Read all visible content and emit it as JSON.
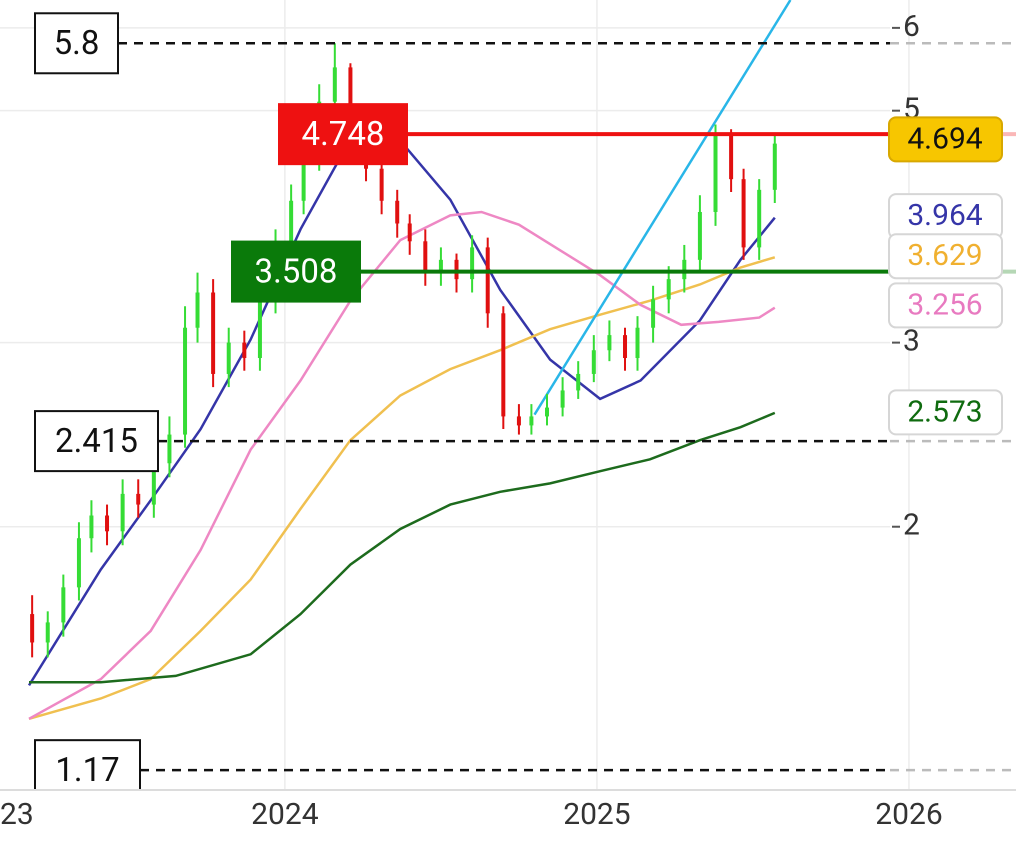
{
  "chart_data": {
    "type": "candlestick",
    "log_scale": true,
    "grid": true,
    "xlim": [
      2023.087,
      2026.343
    ],
    "ylim": [
      1.12,
      6.38
    ],
    "xticks": [
      {
        "value": 2023,
        "label": "23"
      },
      2024,
      2025,
      2026
    ],
    "yticks": [
      2,
      3,
      5,
      6
    ],
    "candles": {
      "up_color": "#35dc35",
      "down_color": "#e01010",
      "last_price": 4.694,
      "x": [
        2023.19,
        2023.24,
        2023.29,
        2023.34,
        2023.38,
        2023.43,
        2023.48,
        2023.53,
        2023.58,
        2023.63,
        2023.68,
        2023.72,
        2023.77,
        2023.82,
        2023.87,
        2023.92,
        2023.97,
        2024.02,
        2024.06,
        2024.11,
        2024.16,
        2024.21,
        2024.26,
        2024.31,
        2024.36,
        2024.4,
        2024.45,
        2024.5,
        2024.55,
        2024.6,
        2024.65,
        2024.7,
        2024.75,
        2024.79,
        2024.84,
        2024.89,
        2024.94,
        2024.99,
        2025.04,
        2025.09,
        2025.13,
        2025.18,
        2025.23,
        2025.28,
        2025.33,
        2025.38,
        2025.43,
        2025.47,
        2025.52,
        2025.57
      ],
      "open": [
        1.65,
        1.55,
        1.62,
        1.75,
        1.95,
        2.05,
        1.98,
        2.15,
        2.1,
        2.3,
        2.45,
        3.1,
        3.35,
        2.8,
        3.0,
        2.9,
        3.3,
        3.7,
        4.1,
        4.5,
        5.1,
        5.5,
        4.9,
        4.4,
        4.1,
        3.9,
        3.75,
        3.5,
        3.6,
        3.45,
        3.7,
        3.2,
        2.55,
        2.5,
        2.55,
        2.6,
        2.7,
        2.8,
        2.95,
        3.05,
        2.9,
        3.1,
        3.3,
        3.45,
        3.6,
        4.0,
        4.75,
        4.3,
        3.7,
        4.2
      ],
      "high": [
        1.72,
        1.66,
        1.8,
        2.02,
        2.12,
        2.1,
        2.22,
        2.22,
        2.38,
        2.55,
        3.25,
        3.5,
        3.45,
        3.1,
        3.08,
        3.42,
        3.85,
        4.25,
        4.65,
        5.3,
        5.8,
        5.55,
        4.98,
        4.5,
        4.2,
        3.98,
        3.85,
        3.7,
        3.65,
        3.8,
        3.78,
        3.25,
        2.62,
        2.62,
        2.68,
        2.78,
        2.88,
        3.05,
        3.15,
        3.1,
        3.18,
        3.4,
        3.55,
        3.72,
        4.15,
        4.85,
        4.8,
        4.4,
        4.3,
        4.75
      ],
      "low": [
        1.5,
        1.5,
        1.57,
        1.7,
        1.89,
        1.92,
        1.92,
        2.04,
        2.04,
        2.23,
        2.38,
        3.0,
        2.72,
        2.72,
        2.82,
        2.82,
        3.2,
        3.6,
        3.98,
        4.38,
        4.95,
        4.75,
        4.28,
        3.98,
        3.78,
        3.64,
        3.4,
        3.4,
        3.35,
        3.35,
        3.1,
        2.48,
        2.45,
        2.45,
        2.5,
        2.55,
        2.65,
        2.75,
        2.88,
        2.82,
        2.82,
        3.0,
        3.2,
        3.35,
        3.5,
        3.88,
        4.18,
        3.6,
        3.6,
        4.08
      ],
      "close": [
        1.55,
        1.62,
        1.75,
        1.95,
        2.05,
        1.98,
        2.15,
        2.1,
        2.3,
        2.45,
        3.1,
        3.35,
        2.8,
        3.0,
        2.9,
        3.3,
        3.7,
        4.1,
        4.5,
        5.1,
        5.5,
        4.9,
        4.4,
        4.1,
        3.9,
        3.75,
        3.5,
        3.6,
        3.45,
        3.7,
        3.2,
        2.55,
        2.5,
        2.55,
        2.6,
        2.7,
        2.8,
        2.95,
        3.05,
        2.9,
        3.1,
        3.3,
        3.45,
        3.6,
        4.0,
        4.75,
        4.3,
        3.7,
        4.2,
        4.65
      ]
    },
    "moving_averages": [
      {
        "color": "#3535a8",
        "label_color": "#3535a8",
        "last": 3.964,
        "x": [
          2023.18,
          2023.41,
          2023.57,
          2023.73,
          2023.89,
          2024.05,
          2024.19,
          2024.37,
          2024.53,
          2024.69,
          2024.85,
          2025.01,
          2025.14,
          2025.33,
          2025.46,
          2025.57
        ],
        "values": [
          1.41,
          1.82,
          2.12,
          2.48,
          3.02,
          3.85,
          4.58,
          4.68,
          4.11,
          3.37,
          2.89,
          2.65,
          2.76,
          3.15,
          3.6,
          3.95
        ]
      },
      {
        "color": "#f0c050",
        "label_color": "#f0b030",
        "last": 3.629,
        "x": [
          2023.18,
          2023.41,
          2023.57,
          2023.73,
          2023.89,
          2024.05,
          2024.21,
          2024.37,
          2024.53,
          2024.69,
          2024.85,
          2025.01,
          2025.17,
          2025.33,
          2025.46,
          2025.57
        ],
        "values": [
          1.31,
          1.37,
          1.43,
          1.59,
          1.78,
          2.08,
          2.42,
          2.67,
          2.83,
          2.95,
          3.09,
          3.19,
          3.29,
          3.41,
          3.54,
          3.62
        ]
      },
      {
        "color": "#ee88c4",
        "label_color": "#e87ac0",
        "last": 3.256,
        "x": [
          2023.18,
          2023.41,
          2023.57,
          2023.73,
          2023.89,
          2024.05,
          2024.21,
          2024.37,
          2024.53,
          2024.63,
          2024.75,
          2024.88,
          2025.01,
          2025.14,
          2025.27,
          2025.39,
          2025.52,
          2025.57
        ],
        "values": [
          1.31,
          1.43,
          1.59,
          1.9,
          2.37,
          2.76,
          3.29,
          3.76,
          3.97,
          4.0,
          3.89,
          3.68,
          3.48,
          3.26,
          3.12,
          3.14,
          3.17,
          3.24
        ]
      },
      {
        "color": "#1d6b1d",
        "label_color": "#0f6b0f",
        "last": 2.573,
        "x": [
          2023.18,
          2023.41,
          2023.65,
          2023.89,
          2024.05,
          2024.21,
          2024.37,
          2024.53,
          2024.69,
          2024.85,
          2025.01,
          2025.17,
          2025.33,
          2025.46,
          2025.57
        ],
        "values": [
          1.42,
          1.42,
          1.44,
          1.51,
          1.65,
          1.84,
          1.99,
          2.1,
          2.16,
          2.2,
          2.26,
          2.32,
          2.42,
          2.49,
          2.57
        ]
      }
    ],
    "trendlines": [
      {
        "color": "#29b6e8",
        "x": [
          2024.8,
          2025.62
        ],
        "values": [
          2.56,
          6.38
        ]
      }
    ],
    "levels": [
      {
        "value": 5.8,
        "color": "#111111",
        "style": "dashed"
      },
      {
        "value": 4.748,
        "color": "#ee1111",
        "style": "solid"
      },
      {
        "value": 3.508,
        "color": "#0a7a0a",
        "style": "solid"
      },
      {
        "value": 2.415,
        "color": "#111111",
        "style": "dashed"
      },
      {
        "value": 1.17,
        "color": "#111111",
        "style": "dashed"
      }
    ]
  }
}
